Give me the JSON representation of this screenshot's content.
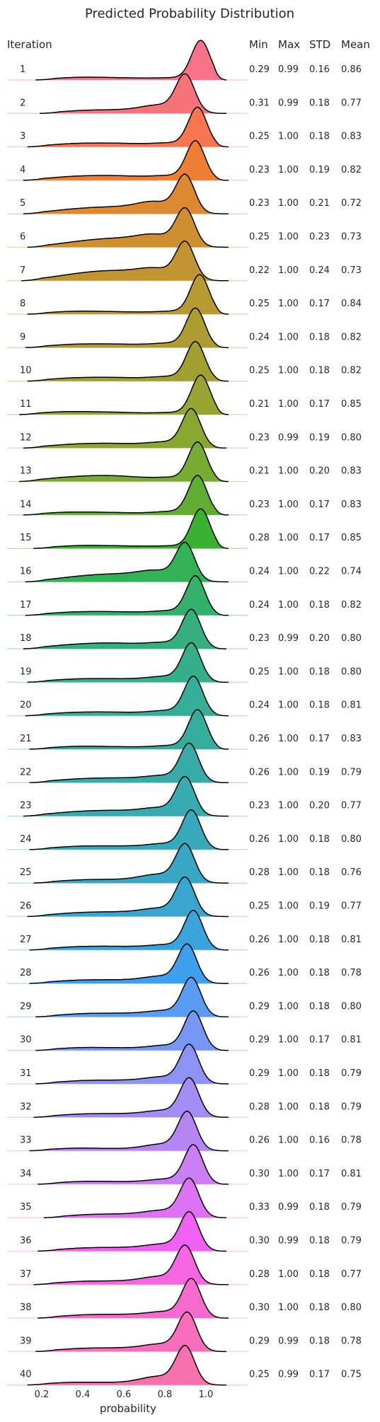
{
  "chart_data": {
    "type": "ridgeline",
    "title": "Predicted Probability Distribution",
    "xlabel": "probability",
    "xlim": [
      0.08,
      1.18
    ],
    "xticks": [
      "0.2",
      "0.4",
      "0.6",
      "0.8",
      "1.0"
    ],
    "xtick_values": [
      0.2,
      0.4,
      0.6,
      0.8,
      1.0
    ],
    "columns": [
      "Iteration",
      "Min",
      "Max",
      "STD",
      "Mean"
    ],
    "rows": [
      {
        "iteration": "1",
        "min": "0.29",
        "max": "0.99",
        "std": "0.16",
        "mean": "0.86",
        "color": "#f77189"
      },
      {
        "iteration": "2",
        "min": "0.31",
        "max": "0.99",
        "std": "0.18",
        "mean": "0.77",
        "color": "#f7737a"
      },
      {
        "iteration": "3",
        "min": "0.25",
        "max": "1.00",
        "std": "0.18",
        "mean": "0.83",
        "color": "#f7754f"
      },
      {
        "iteration": "4",
        "min": "0.23",
        "max": "1.00",
        "std": "0.19",
        "mean": "0.82",
        "color": "#ee7e32"
      },
      {
        "iteration": "5",
        "min": "0.23",
        "max": "1.00",
        "std": "0.21",
        "mean": "0.72",
        "color": "#dc8932"
      },
      {
        "iteration": "6",
        "min": "0.25",
        "max": "1.00",
        "std": "0.23",
        "mean": "0.73",
        "color": "#ce8f31"
      },
      {
        "iteration": "7",
        "min": "0.22",
        "max": "1.00",
        "std": "0.24",
        "mean": "0.73",
        "color": "#c29431"
      },
      {
        "iteration": "8",
        "min": "0.25",
        "max": "1.00",
        "std": "0.17",
        "mean": "0.84",
        "color": "#b79a31"
      },
      {
        "iteration": "9",
        "min": "0.24",
        "max": "1.00",
        "std": "0.18",
        "mean": "0.82",
        "color": "#ad9c31"
      },
      {
        "iteration": "10",
        "min": "0.25",
        "max": "1.00",
        "std": "0.18",
        "mean": "0.82",
        "color": "#a29f31"
      },
      {
        "iteration": "11",
        "min": "0.21",
        "max": "1.00",
        "std": "0.17",
        "mean": "0.85",
        "color": "#97a431"
      },
      {
        "iteration": "12",
        "min": "0.23",
        "max": "0.99",
        "std": "0.19",
        "mean": "0.80",
        "color": "#8aa731"
      },
      {
        "iteration": "13",
        "min": "0.21",
        "max": "1.00",
        "std": "0.20",
        "mean": "0.83",
        "color": "#78ab31"
      },
      {
        "iteration": "14",
        "min": "0.23",
        "max": "1.00",
        "std": "0.17",
        "mean": "0.83",
        "color": "#60ae31"
      },
      {
        "iteration": "15",
        "min": "0.28",
        "max": "1.00",
        "std": "0.17",
        "mean": "0.85",
        "color": "#3bb131"
      },
      {
        "iteration": "16",
        "min": "0.24",
        "max": "1.00",
        "std": "0.22",
        "mean": "0.74",
        "color": "#33b156"
      },
      {
        "iteration": "17",
        "min": "0.24",
        "max": "1.00",
        "std": "0.18",
        "mean": "0.82",
        "color": "#34b06d"
      },
      {
        "iteration": "18",
        "min": "0.23",
        "max": "0.99",
        "std": "0.20",
        "mean": "0.80",
        "color": "#35af7e"
      },
      {
        "iteration": "19",
        "min": "0.25",
        "max": "1.00",
        "std": "0.18",
        "mean": "0.80",
        "color": "#35ae8b"
      },
      {
        "iteration": "20",
        "min": "0.24",
        "max": "1.00",
        "std": "0.18",
        "mean": "0.81",
        "color": "#36ad96"
      },
      {
        "iteration": "21",
        "min": "0.26",
        "max": "1.00",
        "std": "0.17",
        "mean": "0.83",
        "color": "#36ac9f"
      },
      {
        "iteration": "22",
        "min": "0.26",
        "max": "1.00",
        "std": "0.19",
        "mean": "0.79",
        "color": "#37aba8"
      },
      {
        "iteration": "23",
        "min": "0.23",
        "max": "1.00",
        "std": "0.20",
        "mean": "0.77",
        "color": "#38aab1"
      },
      {
        "iteration": "24",
        "min": "0.26",
        "max": "1.00",
        "std": "0.18",
        "mean": "0.80",
        "color": "#38a9ba"
      },
      {
        "iteration": "25",
        "min": "0.28",
        "max": "1.00",
        "std": "0.18",
        "mean": "0.76",
        "color": "#39a7c3"
      },
      {
        "iteration": "26",
        "min": "0.25",
        "max": "1.00",
        "std": "0.19",
        "mean": "0.77",
        "color": "#3aa5ce"
      },
      {
        "iteration": "27",
        "min": "0.26",
        "max": "1.00",
        "std": "0.18",
        "mean": "0.81",
        "color": "#3ba3db"
      },
      {
        "iteration": "28",
        "min": "0.26",
        "max": "1.00",
        "std": "0.18",
        "mean": "0.78",
        "color": "#3ea0ec"
      },
      {
        "iteration": "29",
        "min": "0.29",
        "max": "1.00",
        "std": "0.18",
        "mean": "0.80",
        "color": "#5a9cf4"
      },
      {
        "iteration": "30",
        "min": "0.29",
        "max": "1.00",
        "std": "0.17",
        "mean": "0.81",
        "color": "#7698f4"
      },
      {
        "iteration": "31",
        "min": "0.29",
        "max": "1.00",
        "std": "0.18",
        "mean": "0.79",
        "color": "#8d92f4"
      },
      {
        "iteration": "32",
        "min": "0.28",
        "max": "1.00",
        "std": "0.18",
        "mean": "0.79",
        "color": "#a38cf4"
      },
      {
        "iteration": "33",
        "min": "0.26",
        "max": "1.00",
        "std": "0.16",
        "mean": "0.78",
        "color": "#b685f4"
      },
      {
        "iteration": "34",
        "min": "0.30",
        "max": "1.00",
        "std": "0.17",
        "mean": "0.81",
        "color": "#c97ef4"
      },
      {
        "iteration": "35",
        "min": "0.33",
        "max": "0.99",
        "std": "0.18",
        "mean": "0.79",
        "color": "#de72f4"
      },
      {
        "iteration": "36",
        "min": "0.30",
        "max": "0.99",
        "std": "0.18",
        "mean": "0.79",
        "color": "#f061f3"
      },
      {
        "iteration": "37",
        "min": "0.28",
        "max": "1.00",
        "std": "0.18",
        "mean": "0.77",
        "color": "#f566e1"
      },
      {
        "iteration": "38",
        "min": "0.30",
        "max": "1.00",
        "std": "0.18",
        "mean": "0.80",
        "color": "#f56bcd"
      },
      {
        "iteration": "39",
        "min": "0.29",
        "max": "0.99",
        "std": "0.18",
        "mean": "0.78",
        "color": "#f66ebc"
      },
      {
        "iteration": "40",
        "min": "0.25",
        "max": "0.99",
        "std": "0.17",
        "mean": "0.75",
        "color": "#f670ab"
      }
    ]
  }
}
